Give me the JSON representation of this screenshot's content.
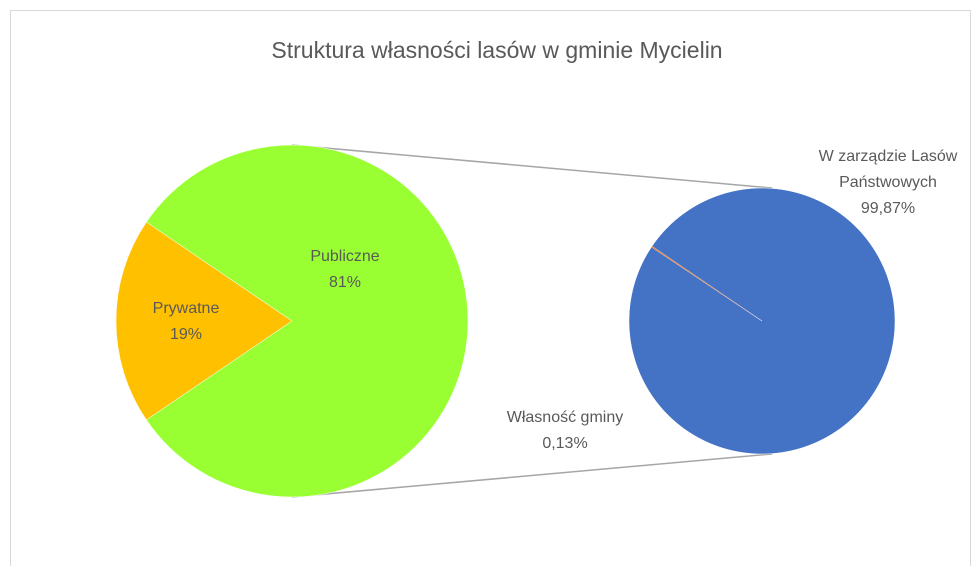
{
  "chart_data": [
    {
      "type": "pie",
      "title": "Struktura własności lasów w gminie Mycielin",
      "categories": [
        "Prywatne",
        "Publiczne"
      ],
      "values": [
        19,
        81
      ],
      "value_labels": [
        "19%",
        "81%"
      ],
      "colors": [
        "#ffc000",
        "#99ff33"
      ]
    },
    {
      "type": "pie",
      "categories": [
        "W zarządzie Lasów Państwowych",
        "Własność gminy"
      ],
      "values": [
        99.87,
        0.13
      ],
      "value_labels": [
        "99,87%",
        "0,13%"
      ],
      "colors": [
        "#4472c4",
        "#ed7d31"
      ]
    }
  ]
}
